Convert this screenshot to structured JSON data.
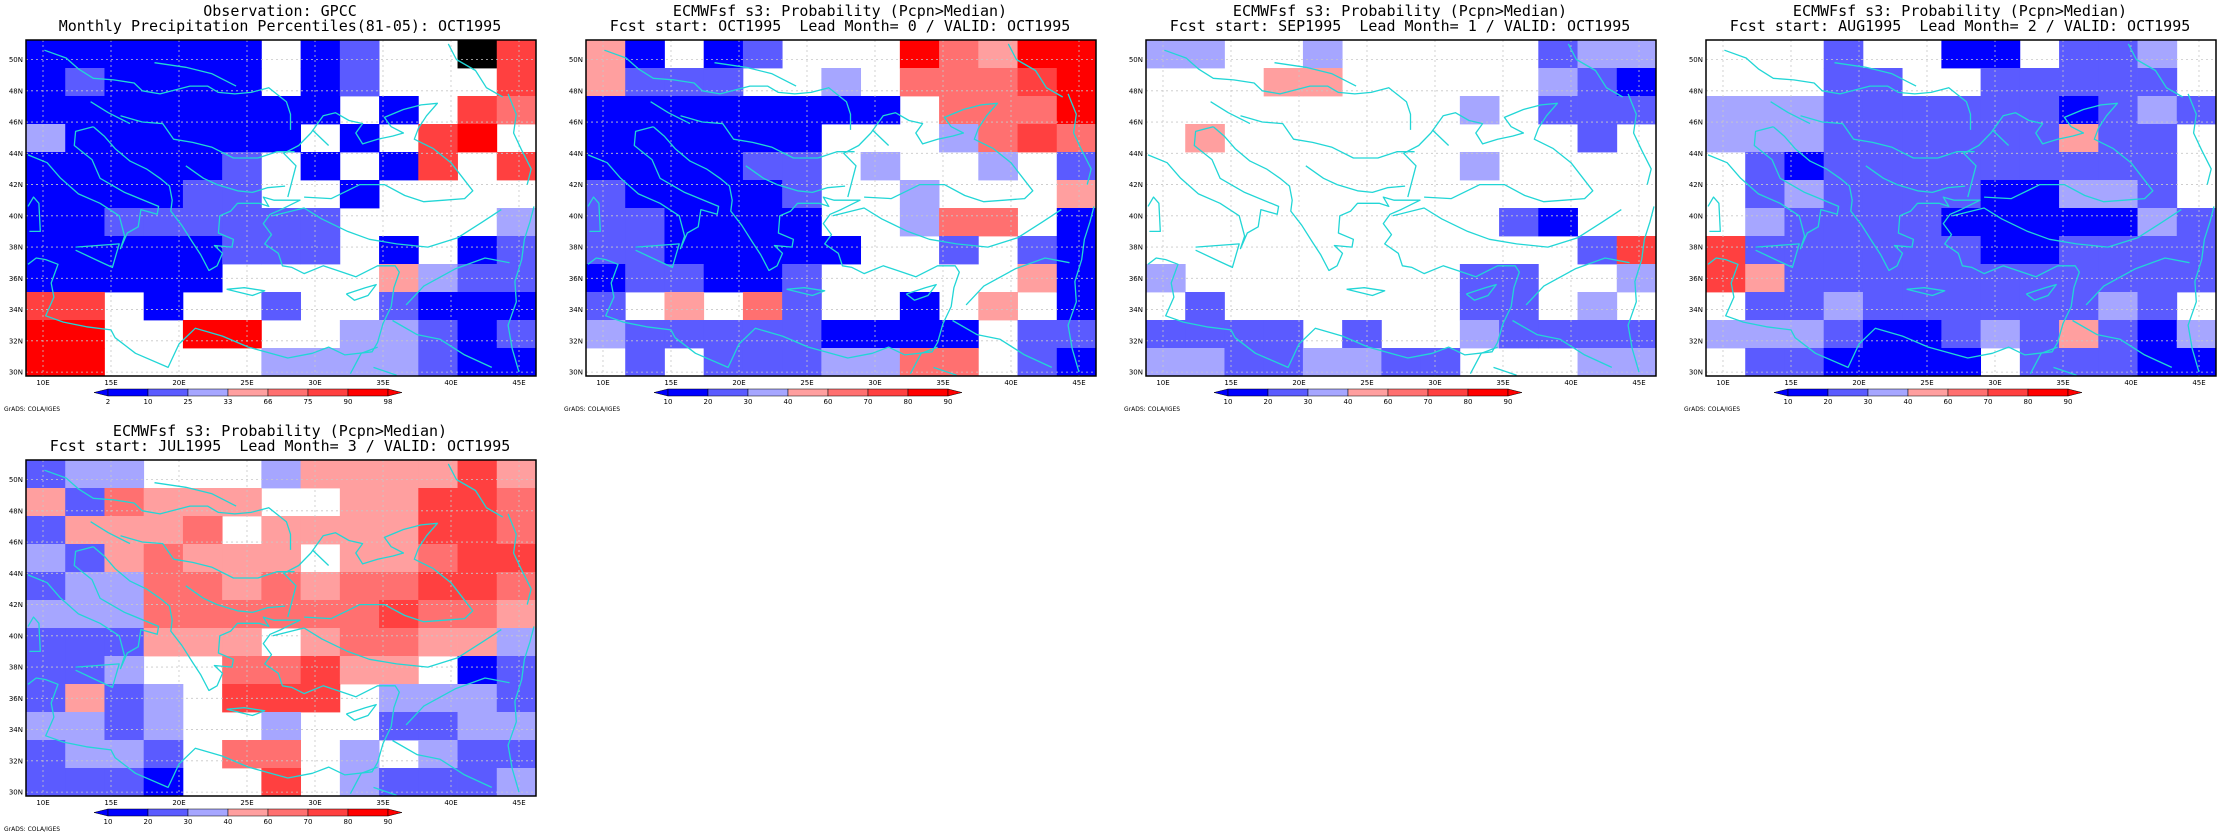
{
  "panels": [
    {
      "id": "obs",
      "title1": "Observation: GPCC",
      "title2": "Monthly Precipitation Percentiles(81-05): OCT1995",
      "cb_labels": [
        "2",
        "10",
        "25",
        "33",
        "66",
        "75",
        "90",
        "98"
      ],
      "grid": [
        "AAAAAA0AB009F",
        "ABAAAA0AB000F",
        "AAAAAAAA0A0FE",
        "CAAAAAA0A0FG0",
        "AAAAAB0A0AF0F",
        "AAAABB00A0000",
        "AABBBBBB0000C",
        "AAAAABBB0A0AB",
        "AAAAA0000DCBB",
        "FF0A00B00BAAA",
        "GG00GG00CCBAB",
        "GG0000CCCCBAA"
      ]
    },
    {
      "id": "lead0",
      "title1": "ECMWFsf s3: Probability (Pcpn>Median)",
      "title2": "Fcst start: OCT1995  Lead Month= 0 / VALID: OCT1995",
      "cb_labels": [
        "10",
        "20",
        "30",
        "40",
        "60",
        "70",
        "80",
        "90"
      ],
      "grid": [
        "DA0AB000GEDGG",
        "DBBB00C0EEEFG",
        "AAAAAAAA0EEEG",
        "AAAAAA000CEFE",
        "AAAABB0C00C0B",
        "BAAAAB00C000D",
        "BBAAAA00CEE0A",
        "BBAAAAA00B0BA",
        "ABBAAB00000DA",
        "B0D0EB00A0D0A",
        "CBBBBBAAAA0BB",
        "0B0BBBCCEE0BA"
      ]
    },
    {
      "id": "lead1",
      "title1": "ECMWFsf s3: Probability (Pcpn>Median)",
      "title2": "Fcst start: SEP1995  Lead Month= 1 / VALID: OCT1995",
      "cb_labels": [
        "10",
        "20",
        "30",
        "40",
        "60",
        "70",
        "80",
        "90"
      ],
      "grid": [
        "CC00C00000BCC",
        "000DD00000CBA",
        "00000000C0BBB",
        "0D000000000B0",
        "00000000C0000",
        "0000000000000",
        "000000000BA00",
        "00000000000BF",
        "C0000000BB00C",
        "0B000000BB0C0",
        "BBBB0B00CBBBB",
        "CCBBCCBB000CC"
      ]
    },
    {
      "id": "lead2",
      "title1": "ECMWFsf s3: Probability (Pcpn>Median)",
      "title2": "Fcst start: AUG1995  Lead Month= 2 / VALID: OCT1995",
      "cb_labels": [
        "10",
        "20",
        "30",
        "40",
        "60",
        "70",
        "80",
        "90"
      ],
      "grid": [
        "000B00AA0BBC0",
        "000BB00BBBBB0",
        "CCCBBBBBBABCB",
        "CCCBBBBBBDBB0",
        "0BABBBBBBBBB0",
        "0BCBBBBAACCB0",
        "0CBBBBAAAAACB",
        "FBBBBBBAABBBB",
        "FDBBBBBBBBBBB",
        "0BBCBBBBBBCB0",
        "CCCBAABCBDBAC",
        "0BBAAAA0BBBAA"
      ]
    },
    {
      "id": "lead3",
      "title1": "ECMWFsf s3: Probability (Pcpn>Median)",
      "title2": "Fcst start: JUL1995  Lead Month= 3 / VALID: OCT1995",
      "cb_labels": [
        "10",
        "20",
        "30",
        "40",
        "60",
        "70",
        "80",
        "90"
      ],
      "grid": [
        "BCC000CDDDDFD",
        "DBEDDD00DDFFE",
        "BDDDE0DDDDFFE",
        "CBDEDDD0DDEFF",
        "BCCEEDEDEEFFE",
        "CCCEEEEEEFEED",
        "BBBDDD0DEEDDC",
        "BBC00EEFDD0AB",
        "BDBC0FFF0CCCB",
        "CCBC00C00BBCC",
        "BCCB0EE0C0CBB",
        "BBBA00F0CBBBC"
      ]
    }
  ],
  "lat_labels": [
    "50N",
    "48N",
    "46N",
    "44N",
    "42N",
    "40N",
    "38N",
    "36N",
    "34N",
    "32N",
    "30N"
  ],
  "lon_labels": [
    "10E",
    "15E",
    "20E",
    "25E",
    "30E",
    "35E",
    "40E",
    "45E"
  ],
  "credit": "GrADS: COLA/IGES",
  "colors": {
    "A": "#0000ff",
    "B": "#5b5bff",
    "C": "#a6a6ff",
    "D": "#ff9f9f",
    "E": "#ff7070",
    "F": "#ff4040",
    "G": "#ff0000",
    "coast": "#22d6d6",
    "grid": "#c8c8c8"
  }
}
